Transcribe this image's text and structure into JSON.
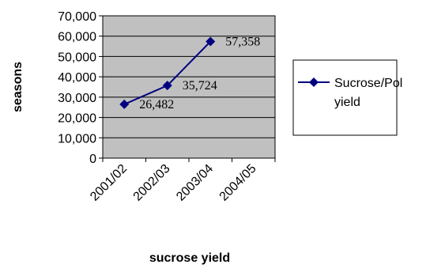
{
  "chart_data": {
    "type": "line",
    "title": "",
    "xlabel": "sucrose yield",
    "ylabel": "seasons",
    "categories": [
      "2001/02",
      "2002/03",
      "2003/04",
      "2004/05"
    ],
    "series": [
      {
        "name": "Sucrose/Pol yield",
        "values": [
          26482,
          35724,
          57358,
          null
        ],
        "data_labels": [
          "26,482",
          "35,724",
          "57,358"
        ],
        "color": "#000080",
        "marker": "diamond"
      }
    ],
    "y_ticks": [
      "0",
      "10,000",
      "20,000",
      "30,000",
      "40,000",
      "50,000",
      "60,000",
      "70,000"
    ],
    "ylim": [
      0,
      70000
    ],
    "grid": true,
    "plot_background": "#c0c0c0",
    "legend_position": "right"
  },
  "legend": {
    "line1": "Sucrose/Pol",
    "line2": "yield"
  }
}
